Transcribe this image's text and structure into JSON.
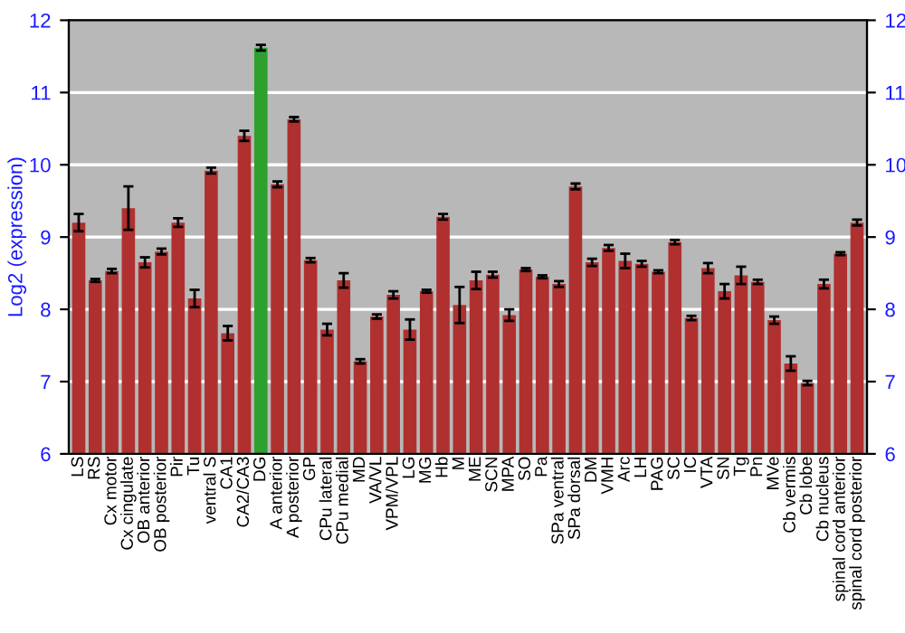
{
  "chart_data": {
    "type": "bar",
    "ylabel": "Log2 (expression)",
    "categories": [
      "LS",
      "RS",
      "Cx motor",
      "Cx cingulate",
      "OB anterior",
      "OB posterior",
      "Pir",
      "Tu",
      "ventral S",
      "CA1",
      "CA2/CA3",
      "DG",
      "A anterior",
      "A posterior",
      "GP",
      "CPu lateral",
      "CPu medial",
      "MD",
      "VA/VL",
      "VPM/VPL",
      "LG",
      "MG",
      "Hb",
      "M",
      "ME",
      "SCN",
      "MPA",
      "SO",
      "Pa",
      "SPa ventral",
      "SPa dorsal",
      "DM",
      "VMH",
      "Arc",
      "LH",
      "PAG",
      "SC",
      "IC",
      "VTA",
      "SN",
      "Tg",
      "Pn",
      "MVe",
      "Cb vermis",
      "Cb lobe",
      "Cb nucleus",
      "spinal cord anterior",
      "spinal cord posterior"
    ],
    "values": [
      9.2,
      8.4,
      8.53,
      9.4,
      8.65,
      8.8,
      9.2,
      8.15,
      9.92,
      7.67,
      10.4,
      11.62,
      9.73,
      10.63,
      8.68,
      7.72,
      8.4,
      7.28,
      7.9,
      8.2,
      7.72,
      8.25,
      9.28,
      8.06,
      8.4,
      8.48,
      7.92,
      8.55,
      8.45,
      8.35,
      9.7,
      8.65,
      8.85,
      8.67,
      8.63,
      8.52,
      8.93,
      7.88,
      8.57,
      8.25,
      8.47,
      8.38,
      7.85,
      7.25,
      6.98,
      8.35,
      8.77,
      9.2
    ],
    "errors": [
      0.12,
      0.02,
      0.03,
      0.3,
      0.07,
      0.04,
      0.06,
      0.12,
      0.04,
      0.1,
      0.07,
      0.04,
      0.04,
      0.03,
      0.03,
      0.08,
      0.1,
      0.03,
      0.03,
      0.05,
      0.14,
      0.02,
      0.04,
      0.25,
      0.12,
      0.04,
      0.08,
      0.02,
      0.02,
      0.04,
      0.04,
      0.05,
      0.04,
      0.1,
      0.04,
      0.02,
      0.03,
      0.03,
      0.07,
      0.1,
      0.12,
      0.03,
      0.05,
      0.1,
      0.03,
      0.06,
      0.02,
      0.04
    ],
    "colors": [
      "#b03030",
      "#b03030",
      "#b03030",
      "#b03030",
      "#b03030",
      "#b03030",
      "#b03030",
      "#b03030",
      "#b03030",
      "#b03030",
      "#b03030",
      "#2ea02e",
      "#b03030",
      "#b03030",
      "#b03030",
      "#b03030",
      "#b03030",
      "#b03030",
      "#b03030",
      "#b03030",
      "#b03030",
      "#b03030",
      "#b03030",
      "#b03030",
      "#b03030",
      "#b03030",
      "#b03030",
      "#b03030",
      "#b03030",
      "#b03030",
      "#b03030",
      "#b03030",
      "#b03030",
      "#b03030",
      "#b03030",
      "#b03030",
      "#b03030",
      "#b03030",
      "#b03030",
      "#b03030",
      "#b03030",
      "#b03030",
      "#b03030",
      "#b03030",
      "#b03030",
      "#b03030",
      "#b03030",
      "#b03030"
    ],
    "ylim": [
      6,
      12
    ],
    "yticks": [
      6,
      7,
      8,
      9,
      10,
      11,
      12
    ],
    "y2lim": [
      6,
      12
    ],
    "y2ticks": [
      6,
      7,
      8,
      9,
      10,
      11,
      12
    ],
    "grid": "y"
  }
}
